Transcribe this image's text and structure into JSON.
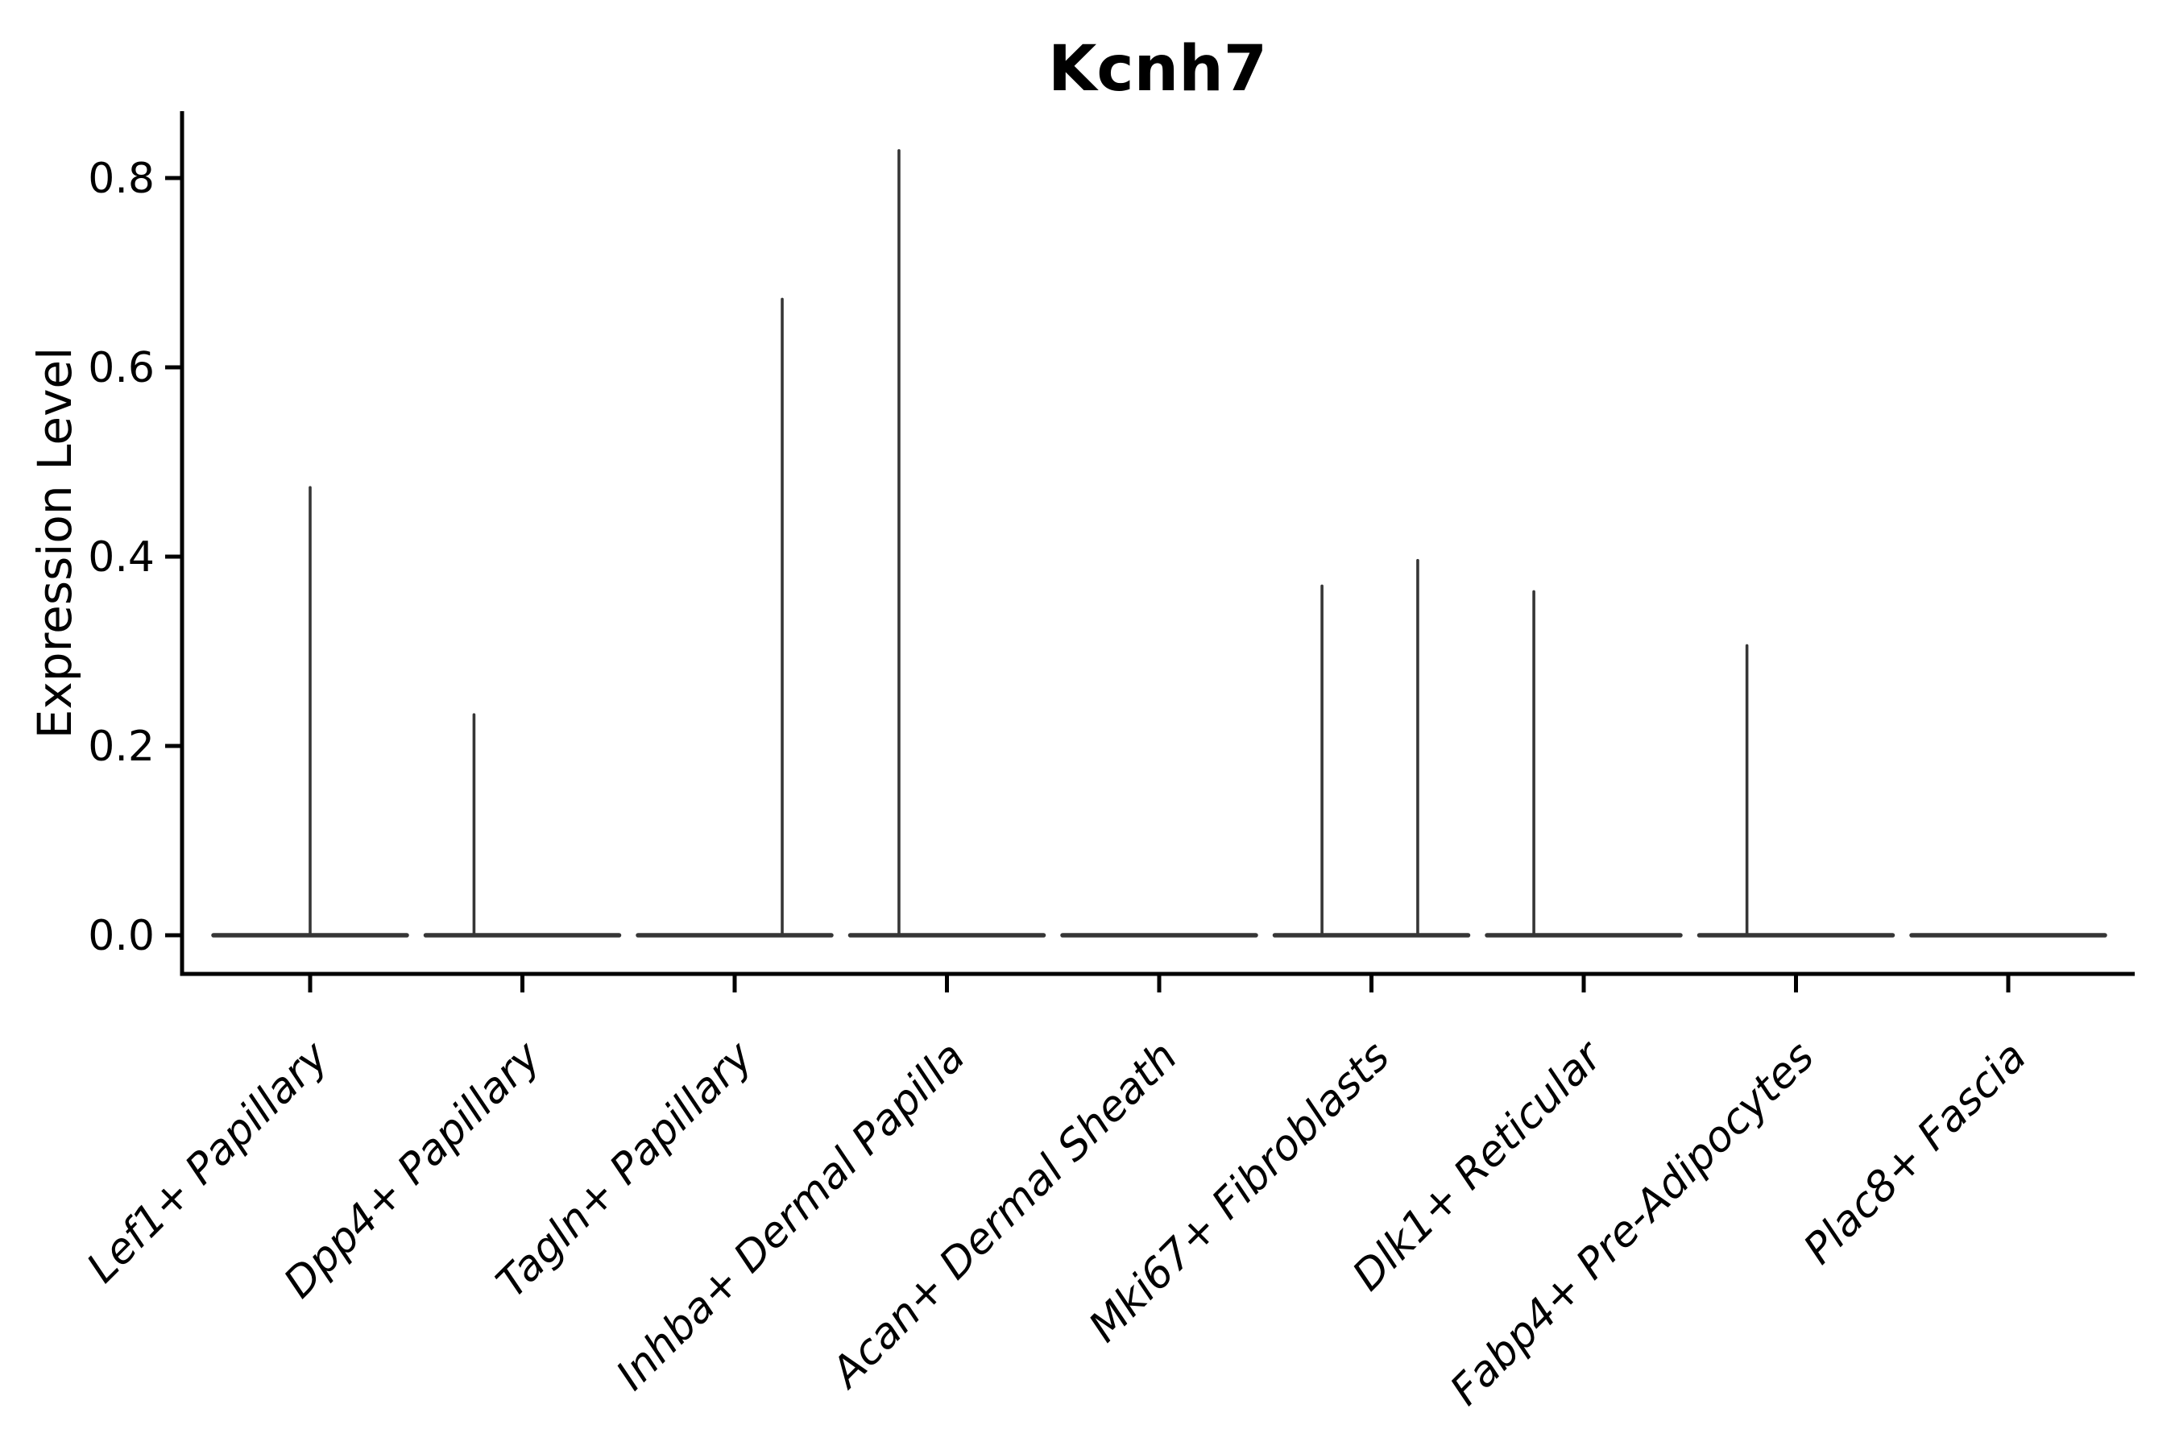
{
  "chart_data": {
    "type": "violin",
    "title": "Kcnh7",
    "xlabel": "",
    "ylabel": "Expression Level",
    "ylim": [
      -0.04,
      0.871
    ],
    "yticks": [
      {
        "label": "0.0",
        "value": 0.0
      },
      {
        "label": "0.2",
        "value": 0.2
      },
      {
        "label": "0.4",
        "value": 0.4
      },
      {
        "label": "0.6",
        "value": 0.6
      },
      {
        "label": "0.8",
        "value": 0.8
      }
    ],
    "grid": false,
    "legend": "none",
    "categories": [
      "Lef1+ Papillary",
      "Dpp4+ Papillary",
      "Tagln+ Papillary",
      "Inhba+ Dermal Papilla",
      "Acan+ Dermal Sheath",
      "Mki67+ Fibroblasts",
      "Dlk1+ Reticular",
      "Fabp4+ Pre-Adipocytes",
      "Plac8+ Fascia"
    ],
    "violins": [
      {
        "category": "Lef1+ Papillary",
        "baseline_value": 0.0,
        "max_expression": 0.473,
        "spikes": [
          {
            "offset_frac": 0.0,
            "value": 0.473
          }
        ]
      },
      {
        "category": "Dpp4+ Papillary",
        "baseline_value": 0.0,
        "max_expression": 0.233,
        "spikes": [
          {
            "offset_frac": -0.228,
            "value": 0.233
          }
        ]
      },
      {
        "category": "Tagln+ Papillary",
        "baseline_value": 0.0,
        "max_expression": 0.672,
        "spikes": [
          {
            "offset_frac": 0.224,
            "value": 0.672
          }
        ]
      },
      {
        "category": "Inhba+ Dermal Papilla",
        "baseline_value": 0.0,
        "max_expression": 0.829,
        "spikes": [
          {
            "offset_frac": -0.226,
            "value": 0.829
          }
        ]
      },
      {
        "category": "Acan+ Dermal Sheath",
        "baseline_value": 0.0,
        "max_expression": 0.0,
        "spikes": []
      },
      {
        "category": "Mki67+ Fibroblasts",
        "baseline_value": 0.0,
        "max_expression": 0.396,
        "spikes": [
          {
            "offset_frac": -0.233,
            "value": 0.369
          },
          {
            "offset_frac": 0.218,
            "value": 0.396
          }
        ]
      },
      {
        "category": "Dlk1+ Reticular",
        "baseline_value": 0.0,
        "max_expression": 0.363,
        "spikes": [
          {
            "offset_frac": -0.235,
            "value": 0.363
          }
        ]
      },
      {
        "category": "Fabp4+ Pre-Adipocytes",
        "baseline_value": 0.0,
        "max_expression": 0.306,
        "spikes": [
          {
            "offset_frac": -0.231,
            "value": 0.306
          }
        ]
      },
      {
        "category": "Plac8+ Fascia",
        "baseline_value": 0.0,
        "max_expression": 0.0,
        "spikes": []
      }
    ],
    "colors": {
      "violin_line": "#363636",
      "spine": "#000000",
      "text": "#000000",
      "background": "#ffffff"
    }
  }
}
